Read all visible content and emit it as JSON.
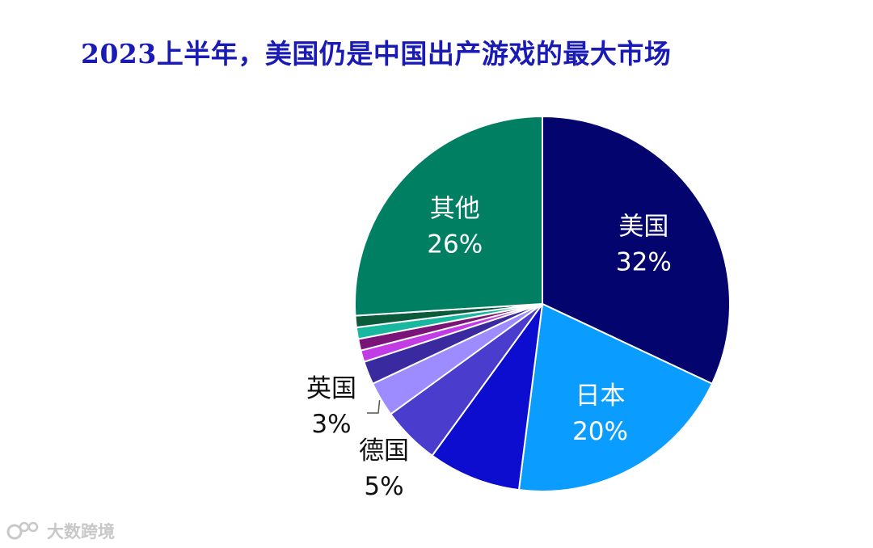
{
  "title": "2023上半年，美国仍是中国出产游戏的最大市场",
  "watermark": "大数跨境",
  "chart_data": {
    "type": "pie",
    "title": "2023上半年，美国仍是中国出产游戏的最大市场",
    "start": "12 o'clock",
    "direction": "clockwise",
    "slices": [
      {
        "label": "美国",
        "value": 32,
        "value_label": "32%",
        "color": "#04046e",
        "label_side": "inside",
        "label_color": "#ffffff"
      },
      {
        "label": "日本",
        "value": 20,
        "value_label": "20%",
        "color": "#0a9dff",
        "label_side": "inside",
        "label_color": "#ffffff"
      },
      {
        "label": "",
        "value": 8,
        "value_label": "",
        "color": "#0d0dd0"
      },
      {
        "label": "德国",
        "value": 5,
        "value_label": "5%",
        "color": "#4a3ccc",
        "label_side": "outside",
        "label_color": "#111111"
      },
      {
        "label": "英国",
        "value": 3,
        "value_label": "3%",
        "color": "#9c8cff",
        "label_side": "outside",
        "label_color": "#111111",
        "leader_line": true
      },
      {
        "label": "",
        "value": 2,
        "value_label": "",
        "color": "#3a2aa0"
      },
      {
        "label": "",
        "value": 1,
        "value_label": "",
        "color": "#c23ce6"
      },
      {
        "label": "",
        "value": 1,
        "value_label": "",
        "color": "#7a1478"
      },
      {
        "label": "",
        "value": 1,
        "value_label": "",
        "color": "#18b8a0"
      },
      {
        "label": "",
        "value": 1,
        "value_label": "",
        "color": "#0a5a3c"
      },
      {
        "label": "其他",
        "value": 26,
        "value_label": "26%",
        "color": "#007f63",
        "label_side": "inside",
        "label_color": "#ffffff"
      }
    ]
  }
}
